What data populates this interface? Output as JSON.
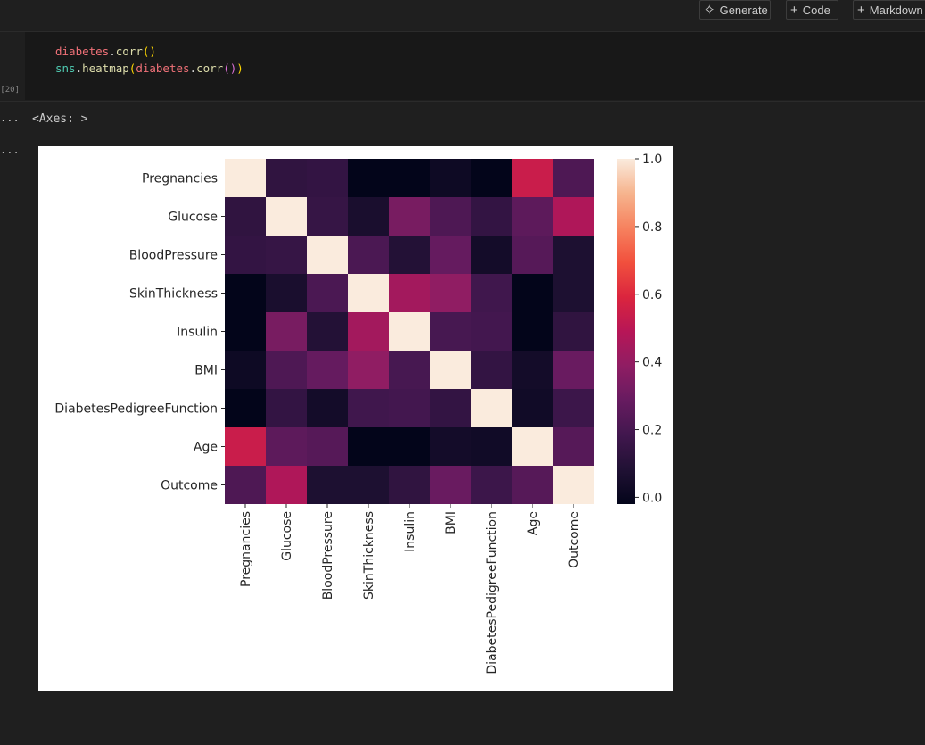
{
  "toolbar": {
    "generate_label": "Generate",
    "code_label": "Code",
    "markdown_label": "Markdown"
  },
  "code": {
    "line1": {
      "var": "diabetes",
      "dot": ".",
      "fn": "corr",
      "open": "(",
      "close": ")"
    },
    "line2": {
      "module": "sns",
      "dot": ".",
      "fn": "heatmap",
      "open": "(",
      "var": "diabetes",
      "dot2": ".",
      "fn2": "corr",
      "inner": "()",
      "close": ")"
    }
  },
  "execution_count": "[20]",
  "output": {
    "ellipsis": "...",
    "text": "<Axes: >"
  },
  "chart_data": {
    "type": "heatmap",
    "rows": [
      "Pregnancies",
      "Glucose",
      "BloodPressure",
      "SkinThickness",
      "Insulin",
      "BMI",
      "DiabetesPedigreeFunction",
      "Age",
      "Outcome"
    ],
    "columns": [
      "Pregnancies",
      "Glucose",
      "BloodPressure",
      "SkinThickness",
      "Insulin",
      "BMI",
      "DiabetesPedigreeFunction",
      "Age",
      "Outcome"
    ],
    "values": [
      [
        1.0,
        0.13,
        0.14,
        -0.08,
        -0.07,
        0.02,
        -0.03,
        0.54,
        0.22
      ],
      [
        0.13,
        1.0,
        0.15,
        0.06,
        0.33,
        0.22,
        0.14,
        0.26,
        0.47
      ],
      [
        0.14,
        0.15,
        1.0,
        0.21,
        0.09,
        0.28,
        0.04,
        0.24,
        0.07
      ],
      [
        -0.08,
        0.06,
        0.21,
        1.0,
        0.44,
        0.39,
        0.18,
        -0.11,
        0.07
      ],
      [
        -0.07,
        0.33,
        0.09,
        0.44,
        1.0,
        0.2,
        0.19,
        -0.04,
        0.13
      ],
      [
        0.02,
        0.22,
        0.28,
        0.39,
        0.2,
        1.0,
        0.14,
        0.04,
        0.29
      ],
      [
        -0.03,
        0.14,
        0.04,
        0.18,
        0.19,
        0.14,
        1.0,
        0.03,
        0.17
      ],
      [
        0.54,
        0.26,
        0.24,
        -0.11,
        -0.04,
        0.04,
        0.03,
        1.0,
        0.24
      ],
      [
        0.22,
        0.47,
        0.07,
        0.07,
        0.13,
        0.29,
        0.17,
        0.24,
        1.0
      ]
    ],
    "colorbar": {
      "ticks": [
        "0.0",
        "0.2",
        "0.4",
        "0.6",
        "0.8",
        "1.0"
      ],
      "tick_values": [
        0.0,
        0.2,
        0.4,
        0.6,
        0.8,
        1.0
      ],
      "range": [
        -0.02,
        1.0
      ]
    },
    "colormap": "rocket",
    "title": "",
    "xlabel": "",
    "ylabel": ""
  }
}
